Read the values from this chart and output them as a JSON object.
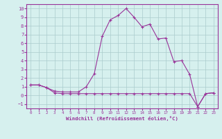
{
  "xlabel": "Windchill (Refroidissement éolien,°C)",
  "upper_x": [
    0,
    1,
    2,
    3,
    4,
    5,
    6,
    7,
    8,
    9,
    10,
    11,
    12,
    13,
    14,
    15,
    16,
    17,
    18,
    19,
    20,
    21,
    22,
    23
  ],
  "upper_y": [
    1.2,
    1.2,
    0.9,
    0.5,
    0.4,
    0.4,
    0.4,
    1.0,
    2.5,
    6.8,
    8.7,
    9.2,
    10.0,
    9.0,
    7.9,
    8.2,
    6.5,
    6.6,
    3.9,
    4.0,
    2.4,
    -1.3,
    0.2,
    0.3
  ],
  "lower_x": [
    0,
    1,
    2,
    3,
    4,
    5,
    6,
    7,
    8,
    9,
    10,
    11,
    12,
    13,
    14,
    15,
    16,
    17,
    18,
    19,
    20,
    21,
    22,
    23
  ],
  "lower_y": [
    1.2,
    1.2,
    0.9,
    0.3,
    0.2,
    0.2,
    0.2,
    0.2,
    0.2,
    0.2,
    0.2,
    0.2,
    0.2,
    0.2,
    0.2,
    0.2,
    0.2,
    0.2,
    0.2,
    0.2,
    0.2,
    -1.3,
    0.2,
    0.3
  ],
  "line_color": "#993399",
  "bg_color": "#d6f0ee",
  "grid_color": "#aacccc",
  "xlim": [
    -0.5,
    23.5
  ],
  "ylim": [
    -1.5,
    10.5
  ],
  "yticks": [
    -1,
    0,
    1,
    2,
    3,
    4,
    5,
    6,
    7,
    8,
    9,
    10
  ],
  "xticks": [
    0,
    1,
    2,
    3,
    4,
    5,
    6,
    7,
    8,
    9,
    10,
    11,
    12,
    13,
    14,
    15,
    16,
    17,
    18,
    19,
    20,
    21,
    22,
    23
  ]
}
